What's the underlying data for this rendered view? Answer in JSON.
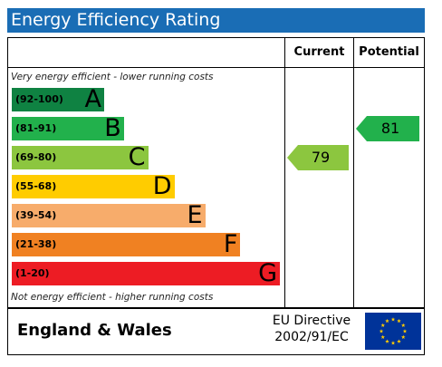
{
  "title": "Energy Efficiency Rating",
  "columns": {
    "current": "Current",
    "potential": "Potential"
  },
  "top_note": "Very energy efficient - lower running costs",
  "bottom_note": "Not energy efficient - higher running costs",
  "footer": {
    "region": "England & Wales",
    "directive_line1": "EU Directive",
    "directive_line2": "2002/91/EC"
  },
  "colors": {
    "title_bar": "#1a6db5",
    "band_A": "#0f8242",
    "band_B": "#22b14c",
    "band_C": "#8cc63f",
    "band_D": "#ffcc00",
    "band_E": "#f7ac6b",
    "band_F": "#f08122",
    "band_G": "#ed1c24",
    "current_arrow": "#8cc63f",
    "potential_arrow": "#22b14c",
    "eu_flag": "#003399",
    "eu_stars": "#ffcc00"
  },
  "icons": {
    "flag": "eu-flag-icon"
  },
  "chart_data": {
    "type": "bar",
    "categories": [
      "A",
      "B",
      "C",
      "D",
      "E",
      "F",
      "G"
    ],
    "ranges": [
      "(92-100)",
      "(81-91)",
      "(69-80)",
      "(55-68)",
      "(39-54)",
      "(21-38)",
      "(1-20)"
    ],
    "values": [
      100,
      91,
      80,
      68,
      54,
      38,
      20
    ],
    "current": {
      "value": 79,
      "label": "79",
      "band": "C"
    },
    "potential": {
      "value": 81,
      "label": "81",
      "band": "B"
    }
  }
}
